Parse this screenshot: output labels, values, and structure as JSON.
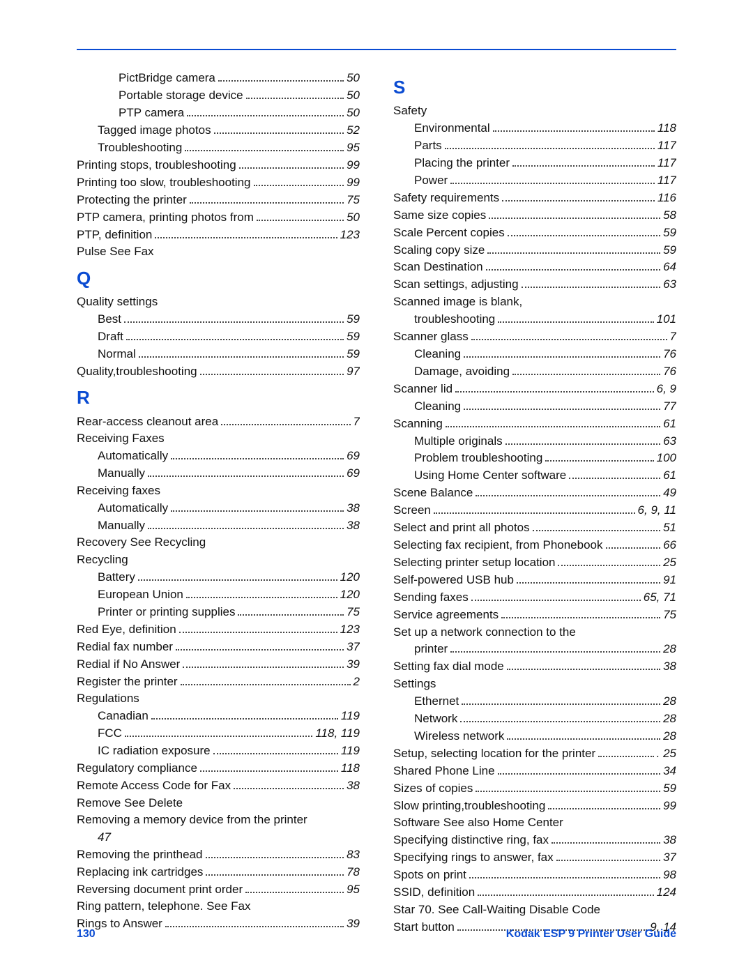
{
  "footer": {
    "pageNumber": "130",
    "title": "Kodak ESP 9 Printer User Guide"
  },
  "left": [
    {
      "indent": 2,
      "label": "PictBridge camera",
      "page": "50"
    },
    {
      "indent": 2,
      "label": "Portable storage device",
      "page": "50"
    },
    {
      "indent": 2,
      "label": "PTP camera",
      "page": "50"
    },
    {
      "indent": 1,
      "label": "Tagged image photos",
      "page": "52"
    },
    {
      "indent": 1,
      "label": "Troubleshooting",
      "page": "95"
    },
    {
      "indent": 0,
      "label": "Printing stops, troubleshooting",
      "page": "99"
    },
    {
      "indent": 0,
      "label": "Printing too slow, troubleshooting",
      "page": "99"
    },
    {
      "indent": 0,
      "label": "Protecting the printer",
      "page": "75"
    },
    {
      "indent": 0,
      "label": "PTP camera, printing photos from",
      "page": "50"
    },
    {
      "indent": 0,
      "label": "PTP, definition",
      "page": "123"
    },
    {
      "indent": 0,
      "label": "Pulse  See Fax",
      "page": null
    },
    {
      "letter": "Q"
    },
    {
      "indent": 0,
      "label": "Quality settings",
      "page": null
    },
    {
      "indent": 1,
      "label": "Best",
      "page": "59"
    },
    {
      "indent": 1,
      "label": "Draft",
      "page": "59"
    },
    {
      "indent": 1,
      "label": "Normal",
      "page": "59"
    },
    {
      "indent": 0,
      "label": "Quality,troubleshooting",
      "page": "97"
    },
    {
      "letter": "R"
    },
    {
      "indent": 0,
      "label": "Rear-access cleanout area",
      "page": "7"
    },
    {
      "indent": 0,
      "label": "Receiving Faxes",
      "page": null
    },
    {
      "indent": 1,
      "label": "Automatically",
      "page": "69"
    },
    {
      "indent": 1,
      "label": "Manually",
      "page": "69"
    },
    {
      "indent": 0,
      "label": "Receiving faxes",
      "page": null
    },
    {
      "indent": 1,
      "label": "Automatically",
      "page": "38"
    },
    {
      "indent": 1,
      "label": "Manually",
      "page": "38"
    },
    {
      "indent": 0,
      "label": "Recovery See Recycling",
      "page": null
    },
    {
      "indent": 0,
      "label": "Recycling",
      "page": null
    },
    {
      "indent": 1,
      "label": "Battery",
      "page": "120"
    },
    {
      "indent": 1,
      "label": "European Union",
      "page": "120"
    },
    {
      "indent": 1,
      "label": "Printer or printing supplies",
      "page": "75"
    },
    {
      "indent": 0,
      "label": "Red Eye, definition",
      "page": "123"
    },
    {
      "indent": 0,
      "label": "Redial fax number",
      "page": "37"
    },
    {
      "indent": 0,
      "label": "Redial if No Answer",
      "page": "39"
    },
    {
      "indent": 0,
      "label": "Register the printer",
      "page": "2"
    },
    {
      "indent": 0,
      "label": "Regulations",
      "page": null
    },
    {
      "indent": 1,
      "label": "Canadian",
      "page": "119"
    },
    {
      "indent": 1,
      "label": "FCC",
      "page": "118, 119"
    },
    {
      "indent": 1,
      "label": "IC radiation exposure",
      "page": "119"
    },
    {
      "indent": 0,
      "label": "Regulatory compliance",
      "page": "118"
    },
    {
      "indent": 0,
      "label": "Remote Access Code for Fax",
      "page": "38"
    },
    {
      "indent": 0,
      "label": "Remove  See Delete",
      "page": null
    },
    {
      "indent": 0,
      "label": "Removing a memory device from the printer",
      "page": null
    },
    {
      "indent": 1,
      "label": "47",
      "page": null,
      "italicLabel": true
    },
    {
      "indent": 0,
      "label": "Removing the printhead",
      "page": "83"
    },
    {
      "indent": 0,
      "label": "Replacing ink cartridges",
      "page": "78"
    },
    {
      "indent": 0,
      "label": "Reversing document print order",
      "page": "95"
    },
    {
      "indent": 0,
      "label": "Ring pattern, telephone. See Fax",
      "page": null
    },
    {
      "indent": 0,
      "label": "Rings to Answer",
      "page": "39"
    }
  ],
  "right": [
    {
      "letter": "S"
    },
    {
      "indent": 0,
      "label": "Safety",
      "page": null
    },
    {
      "indent": 1,
      "label": "Environmental",
      "page": "118"
    },
    {
      "indent": 1,
      "label": "Parts",
      "page": "117"
    },
    {
      "indent": 1,
      "label": "Placing the printer",
      "page": "117"
    },
    {
      "indent": 1,
      "label": "Power",
      "page": "117"
    },
    {
      "indent": 0,
      "label": "Safety requirements",
      "page": "116"
    },
    {
      "indent": 0,
      "label": "Same size copies",
      "page": "58"
    },
    {
      "indent": 0,
      "label": "Scale Percent copies",
      "page": "59"
    },
    {
      "indent": 0,
      "label": "Scaling copy size",
      "page": "59"
    },
    {
      "indent": 0,
      "label": "Scan Destination",
      "page": "64"
    },
    {
      "indent": 0,
      "label": "Scan settings, adjusting",
      "page": "63"
    },
    {
      "indent": 0,
      "label": "Scanned image is blank,",
      "page": null
    },
    {
      "indent": 1,
      "label": "troubleshooting",
      "page": "101"
    },
    {
      "indent": 0,
      "label": "Scanner glass",
      "page": "7"
    },
    {
      "indent": 1,
      "label": "Cleaning",
      "page": "76"
    },
    {
      "indent": 1,
      "label": "Damage, avoiding",
      "page": "76"
    },
    {
      "indent": 0,
      "label": "Scanner lid",
      "page": "6, 9"
    },
    {
      "indent": 1,
      "label": "Cleaning",
      "page": "77"
    },
    {
      "indent": 0,
      "label": "Scanning",
      "page": "61"
    },
    {
      "indent": 1,
      "label": "Multiple originals",
      "page": "63"
    },
    {
      "indent": 1,
      "label": "Problem troubleshooting",
      "page": "100"
    },
    {
      "indent": 1,
      "label": "Using Home Center software",
      "page": "61"
    },
    {
      "indent": 0,
      "label": "Scene Balance",
      "page": "49"
    },
    {
      "indent": 0,
      "label": "Screen",
      "page": "6, 9, 11"
    },
    {
      "indent": 0,
      "label": "Select and print all photos",
      "page": "51"
    },
    {
      "indent": 0,
      "label": "Selecting fax recipient, from Phonebook",
      "page": "66"
    },
    {
      "indent": 0,
      "label": "Selecting printer setup location",
      "page": "25"
    },
    {
      "indent": 0,
      "label": "Self-powered USB hub",
      "page": "91"
    },
    {
      "indent": 0,
      "label": "Sending faxes",
      "page": "65, 71"
    },
    {
      "indent": 0,
      "label": "Service agreements",
      "page": "75"
    },
    {
      "indent": 0,
      "label": "Set up a network connection to the",
      "page": null
    },
    {
      "indent": 1,
      "label": "printer",
      "page": "28"
    },
    {
      "indent": 0,
      "label": "Setting fax dial mode",
      "page": "38"
    },
    {
      "indent": 0,
      "label": "Settings",
      "page": null
    },
    {
      "indent": 1,
      "label": "Ethernet",
      "page": "28"
    },
    {
      "indent": 1,
      "label": "Network",
      "page": "28"
    },
    {
      "indent": 1,
      "label": "Wireless network",
      "page": "28"
    },
    {
      "indent": 0,
      "label": "Setup, selecting location for the printer",
      "page": ". 25"
    },
    {
      "indent": 0,
      "label": "Shared Phone Line",
      "page": "34"
    },
    {
      "indent": 0,
      "label": "Sizes of copies",
      "page": "59"
    },
    {
      "indent": 0,
      "label": "Slow printing,troubleshooting",
      "page": "99"
    },
    {
      "indent": 0,
      "label": "Software  See also Home Center",
      "page": null
    },
    {
      "indent": 0,
      "label": "Specifying distinctive ring, fax",
      "page": "38"
    },
    {
      "indent": 0,
      "label": "Specifying rings to answer, fax",
      "page": "37"
    },
    {
      "indent": 0,
      "label": "Spots on print",
      "page": "98"
    },
    {
      "indent": 0,
      "label": "SSID, definition",
      "page": "124"
    },
    {
      "indent": 0,
      "label": "Star 70. See Call-Waiting Disable Code",
      "page": null
    },
    {
      "indent": 0,
      "label": "Start button",
      "page": "9, 14"
    }
  ]
}
